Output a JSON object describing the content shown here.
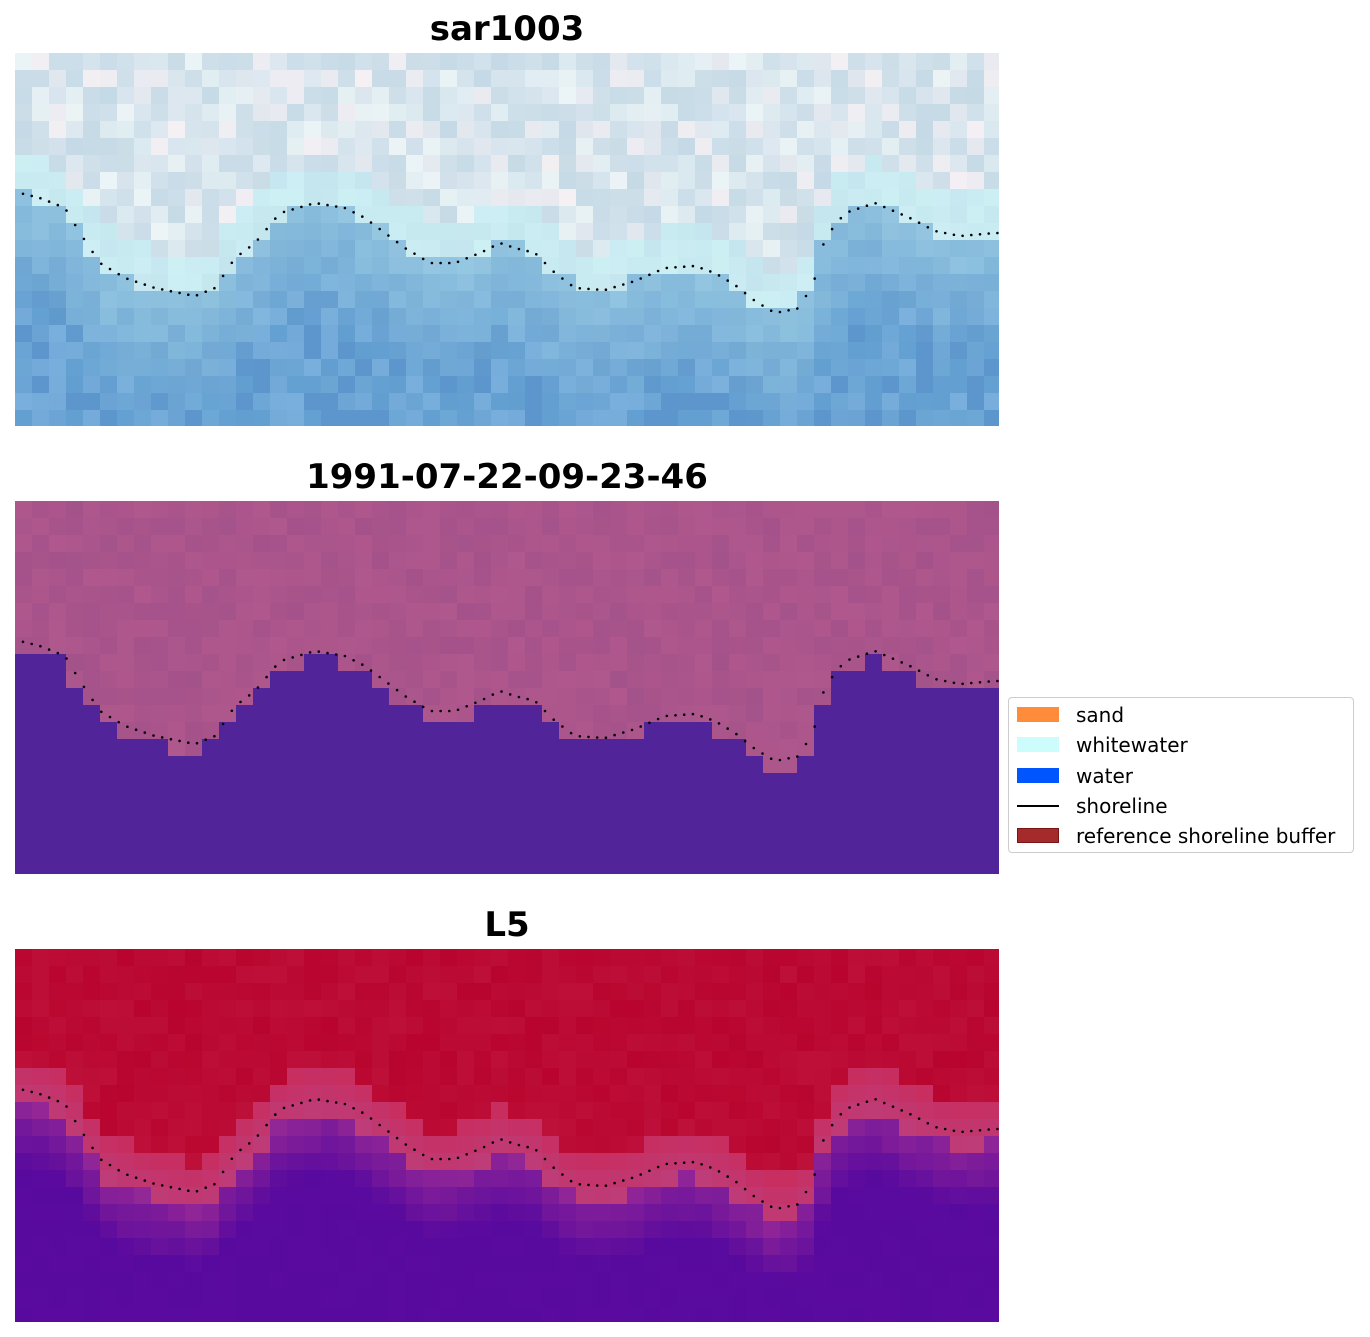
{
  "panels": [
    {
      "title": "sar1003",
      "id": "panel-sar"
    },
    {
      "title": "1991-07-22-09-23-46",
      "id": "panel-classified"
    },
    {
      "title": "L5",
      "id": "panel-l5"
    }
  ],
  "legend": {
    "items": [
      {
        "label": "sand",
        "color": "#ff8c3a",
        "kind": "patch"
      },
      {
        "label": "whitewater",
        "color": "#ccfcfc",
        "kind": "patch"
      },
      {
        "label": "water",
        "color": "#0055ff",
        "kind": "patch"
      },
      {
        "label": "shoreline",
        "color": "#000000",
        "kind": "line"
      },
      {
        "label": "reference shoreline buffer",
        "color": "#a52a2a",
        "kind": "patch"
      }
    ]
  },
  "colors": {
    "classified_land": "#b0588d",
    "classified_water": "#52249a",
    "l5_land": "#b8042e",
    "l5_water": "#5a0a9e",
    "shoreline_dots": "#000000"
  }
}
